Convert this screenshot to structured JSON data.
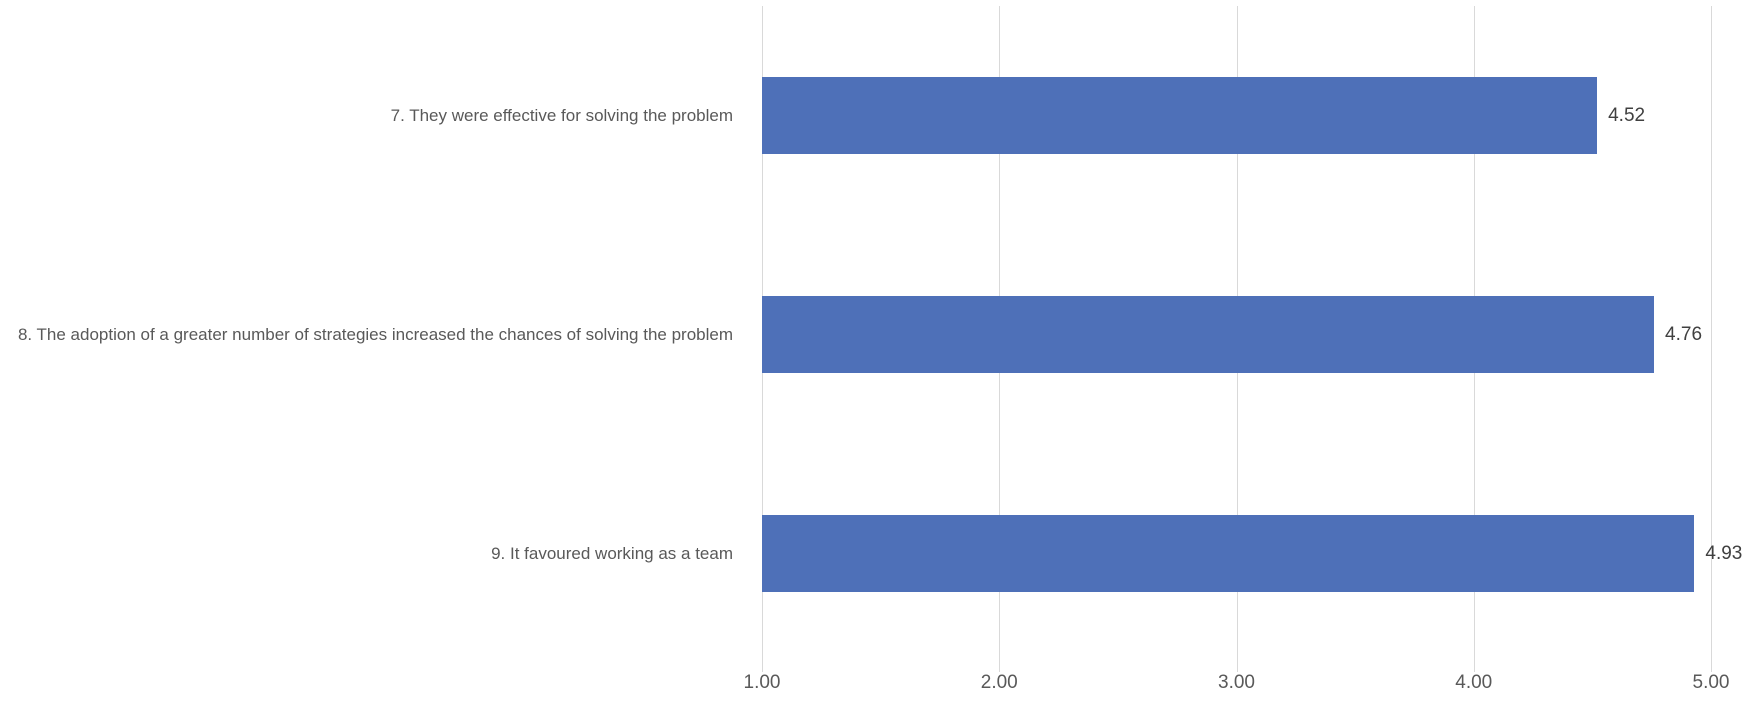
{
  "chart_data": {
    "type": "bar",
    "orientation": "horizontal",
    "title": "",
    "categories": [
      "7. They were effective for solving the problem",
      "8. The adoption of a greater number of strategies increased the chances of solving the problem",
      "9. It favoured working as a team"
    ],
    "values": [
      4.52,
      4.76,
      4.93
    ],
    "value_labels": [
      "4.52",
      "4.76",
      "4.93"
    ],
    "x_ticks": [
      "1.00",
      "2.00",
      "3.00",
      "4.00",
      "5.00"
    ],
    "xlim": [
      1,
      5
    ],
    "grid": true,
    "legend": false,
    "layout": {
      "bars_start_at_axis_min": true,
      "category_order": "top-to-bottom",
      "data_labels_position": "outside-end"
    },
    "colors": {
      "bar": "#4E70B8",
      "gridline": "#D9D9D9",
      "tick_label": "#595959",
      "category_label": "#595959",
      "data_label": "#404040",
      "background": "#FFFFFF"
    }
  }
}
